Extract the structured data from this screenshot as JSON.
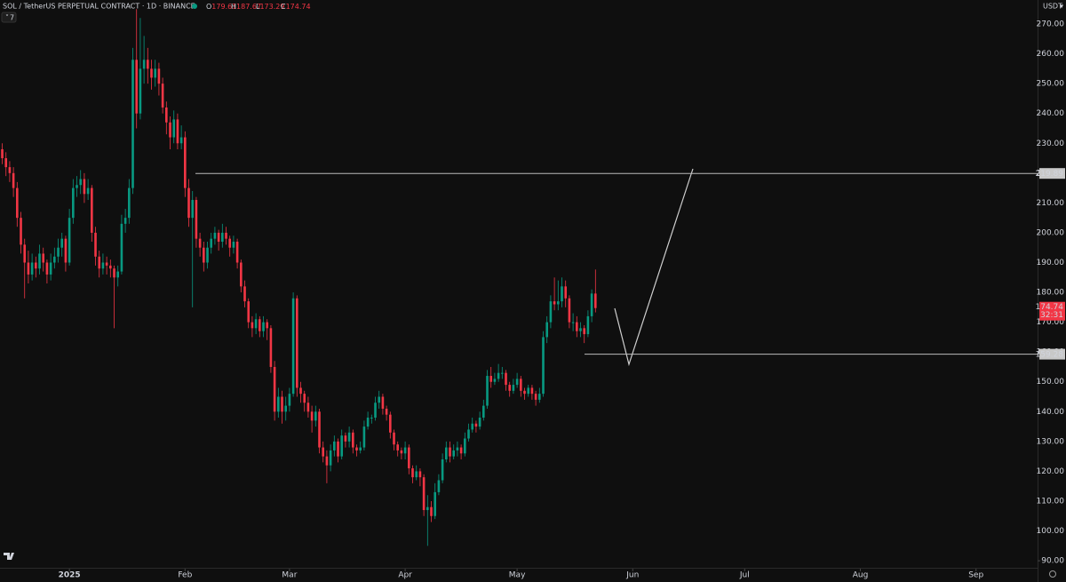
{
  "chart_data": {
    "type": "candlestick",
    "symbol": "SOL / TetherUS PERPETUAL CONTRACT · 1D · BINANCE",
    "ohlc_prefixes": [
      "O",
      "H",
      "L",
      "C"
    ],
    "currency": "USDT",
    "indicator_count": "7",
    "countdown": "32:31",
    "up_color": "#089981",
    "down_color": "#f23645",
    "ohlc": [
      [
        228,
        230,
        223,
        225
      ],
      [
        225,
        227,
        219,
        222
      ],
      [
        222,
        224,
        217,
        220
      ],
      [
        220,
        222,
        212,
        215
      ],
      [
        215,
        217,
        202,
        205
      ],
      [
        205,
        207,
        193,
        196
      ],
      [
        196,
        198,
        178,
        190
      ],
      [
        190,
        194,
        183,
        186
      ],
      [
        186,
        193,
        184,
        190
      ],
      [
        190,
        192,
        185,
        188
      ],
      [
        188,
        196,
        186,
        193
      ],
      [
        193,
        195,
        187,
        190
      ],
      [
        190,
        191,
        183,
        186
      ],
      [
        186,
        193,
        184,
        190
      ],
      [
        190,
        195,
        188,
        192
      ],
      [
        192,
        198,
        190,
        195
      ],
      [
        195,
        200,
        192,
        198
      ],
      [
        198,
        199,
        187,
        190
      ],
      [
        190,
        208,
        189,
        205
      ],
      [
        205,
        218,
        203,
        215
      ],
      [
        215,
        219,
        212,
        216
      ],
      [
        216,
        221,
        213,
        218
      ],
      [
        218,
        220,
        210,
        213
      ],
      [
        213,
        218,
        211,
        215
      ],
      [
        215,
        216,
        197,
        200
      ],
      [
        200,
        202,
        189,
        192
      ],
      [
        192,
        194,
        185,
        188
      ],
      [
        188,
        193,
        186,
        190
      ],
      [
        190,
        192,
        186,
        189
      ],
      [
        189,
        191,
        185,
        188
      ],
      [
        188,
        189,
        168,
        185
      ],
      [
        185,
        189,
        182,
        187
      ],
      [
        187,
        206,
        186,
        203
      ],
      [
        203,
        208,
        200,
        205
      ],
      [
        205,
        218,
        203,
        215
      ],
      [
        215,
        262,
        213,
        258
      ],
      [
        258,
        275,
        235,
        240
      ],
      [
        240,
        272,
        238,
        255
      ],
      [
        255,
        266,
        250,
        258
      ],
      [
        258,
        262,
        250,
        255
      ],
      [
        255,
        258,
        248,
        252
      ],
      [
        252,
        258,
        249,
        255
      ],
      [
        255,
        257,
        246,
        250
      ],
      [
        250,
        252,
        240,
        242
      ],
      [
        242,
        244,
        233,
        237
      ],
      [
        237,
        239,
        228,
        232
      ],
      [
        232,
        241,
        230,
        238
      ],
      [
        238,
        240,
        228,
        230
      ],
      [
        230,
        236,
        228,
        232
      ],
      [
        232,
        234,
        212,
        215
      ],
      [
        215,
        218,
        202,
        205
      ],
      [
        205,
        214,
        175,
        211
      ],
      [
        211,
        212,
        195,
        198
      ],
      [
        198,
        200,
        192,
        195
      ],
      [
        195,
        197,
        187,
        190
      ],
      [
        190,
        197,
        188,
        195
      ],
      [
        195,
        200,
        193,
        198
      ],
      [
        198,
        202,
        196,
        200
      ],
      [
        200,
        201,
        194,
        197
      ],
      [
        197,
        203,
        195,
        200
      ],
      [
        200,
        202,
        196,
        198
      ],
      [
        198,
        199,
        192,
        195
      ],
      [
        195,
        199,
        193,
        197
      ],
      [
        197,
        198,
        188,
        190
      ],
      [
        190,
        191,
        180,
        182
      ],
      [
        182,
        184,
        175,
        177
      ],
      [
        177,
        178,
        168,
        170
      ],
      [
        170,
        172,
        165,
        168
      ],
      [
        168,
        173,
        166,
        171
      ],
      [
        171,
        172,
        165,
        167
      ],
      [
        167,
        172,
        165,
        170
      ],
      [
        170,
        171,
        164,
        168
      ],
      [
        168,
        169,
        153,
        155
      ],
      [
        155,
        157,
        137,
        140
      ],
      [
        140,
        148,
        138,
        145
      ],
      [
        145,
        147,
        136,
        140
      ],
      [
        140,
        145,
        137,
        142
      ],
      [
        142,
        148,
        140,
        146
      ],
      [
        146,
        180,
        145,
        178
      ],
      [
        178,
        179,
        145,
        148
      ],
      [
        148,
        150,
        143,
        146
      ],
      [
        146,
        147,
        140,
        143
      ],
      [
        143,
        145,
        138,
        140
      ],
      [
        140,
        142,
        133,
        137
      ],
      [
        137,
        142,
        135,
        140
      ],
      [
        140,
        141,
        126,
        128
      ],
      [
        128,
        130,
        123,
        125
      ],
      [
        125,
        127,
        116,
        122
      ],
      [
        122,
        129,
        120,
        127
      ],
      [
        127,
        132,
        125,
        130
      ],
      [
        130,
        131,
        123,
        125
      ],
      [
        125,
        134,
        124,
        132
      ],
      [
        132,
        133,
        128,
        130
      ],
      [
        130,
        135,
        128,
        133
      ],
      [
        133,
        134,
        126,
        128
      ],
      [
        128,
        129,
        125,
        127
      ],
      [
        127,
        130,
        126,
        128
      ],
      [
        128,
        137,
        127,
        135
      ],
      [
        135,
        140,
        134,
        138
      ],
      [
        138,
        139,
        136,
        138
      ],
      [
        138,
        145,
        137,
        143
      ],
      [
        143,
        147,
        141,
        145
      ],
      [
        145,
        146,
        139,
        141
      ],
      [
        141,
        142,
        137,
        139
      ],
      [
        139,
        140,
        131,
        133
      ],
      [
        133,
        134,
        127,
        129
      ],
      [
        129,
        130,
        125,
        127
      ],
      [
        127,
        128,
        124,
        126
      ],
      [
        126,
        130,
        124,
        128
      ],
      [
        128,
        129,
        119,
        121
      ],
      [
        121,
        122,
        116,
        118
      ],
      [
        118,
        122,
        117,
        120
      ],
      [
        120,
        121,
        115,
        118
      ],
      [
        118,
        119,
        105,
        107
      ],
      [
        107,
        112,
        95,
        108
      ],
      [
        108,
        110,
        103,
        105
      ],
      [
        105,
        116,
        104,
        113
      ],
      [
        113,
        119,
        112,
        117
      ],
      [
        117,
        126,
        116,
        124
      ],
      [
        124,
        130,
        123,
        128
      ],
      [
        128,
        130,
        123,
        125
      ],
      [
        125,
        129,
        124,
        127
      ],
      [
        127,
        130,
        125,
        128
      ],
      [
        128,
        129,
        124,
        126
      ],
      [
        126,
        133,
        125,
        131
      ],
      [
        131,
        136,
        130,
        134
      ],
      [
        134,
        138,
        133,
        136
      ],
      [
        136,
        137,
        133,
        135
      ],
      [
        135,
        140,
        134,
        138
      ],
      [
        138,
        144,
        137,
        142
      ],
      [
        142,
        154,
        141,
        152
      ],
      [
        152,
        155,
        148,
        150
      ],
      [
        150,
        153,
        149,
        151
      ],
      [
        151,
        156,
        150,
        153
      ],
      [
        153,
        155,
        151,
        153
      ],
      [
        153,
        154,
        147,
        149
      ],
      [
        149,
        150,
        145,
        147
      ],
      [
        147,
        151,
        146,
        149
      ],
      [
        149,
        153,
        148,
        151
      ],
      [
        151,
        152,
        145,
        147
      ],
      [
        147,
        148,
        144,
        146
      ],
      [
        146,
        149,
        145,
        148
      ],
      [
        148,
        149,
        144,
        146
      ],
      [
        146,
        147,
        142,
        144
      ],
      [
        144,
        148,
        143,
        146
      ],
      [
        146,
        167,
        145,
        165
      ],
      [
        165,
        172,
        163,
        170
      ],
      [
        170,
        179,
        168,
        177
      ],
      [
        177,
        185,
        174,
        176
      ],
      [
        176,
        184,
        174,
        177
      ],
      [
        177,
        185,
        175,
        182
      ],
      [
        182,
        184,
        175,
        178
      ],
      [
        178,
        179,
        168,
        170
      ],
      [
        170,
        173,
        167,
        170
      ],
      [
        170,
        172,
        165,
        167
      ],
      [
        167,
        170,
        165,
        168
      ],
      [
        168,
        169,
        163,
        166
      ],
      [
        166,
        174,
        165,
        172
      ],
      [
        172,
        181,
        170,
        179.61
      ],
      [
        179.61,
        187.67,
        173.29,
        174.74
      ]
    ],
    "levels": [
      219.89,
      159.28
    ],
    "xlim": [
      -0.6,
      277.5
    ],
    "xticks": [
      {
        "value": 18,
        "label": "2025"
      },
      {
        "value": 49,
        "label": "Feb"
      },
      {
        "value": 77,
        "label": "Mar"
      },
      {
        "value": 108,
        "label": "Apr"
      },
      {
        "value": 138,
        "label": "May"
      },
      {
        "value": 169,
        "label": "Jun"
      },
      {
        "value": 199,
        "label": "Jul"
      },
      {
        "value": 230,
        "label": "Aug"
      },
      {
        "value": 261,
        "label": "Sep"
      }
    ],
    "ylim": [
      87.35,
      278.05
    ],
    "yticks": [
      {
        "value": 90,
        "label": "90.00"
      },
      {
        "value": 100,
        "label": "100.00"
      },
      {
        "value": 110,
        "label": "110.00"
      },
      {
        "value": 120,
        "label": "120.00"
      },
      {
        "value": 130,
        "label": "130.00"
      },
      {
        "value": 140,
        "label": "140.00"
      },
      {
        "value": 150,
        "label": "150.00"
      },
      {
        "value": 160,
        "label": "160.00"
      },
      {
        "value": 170,
        "label": "170.00"
      },
      {
        "value": 180,
        "label": "180.00"
      },
      {
        "value": 190,
        "label": "190.00"
      },
      {
        "value": 200,
        "label": "200.00"
      },
      {
        "value": 210,
        "label": "210.00"
      },
      {
        "value": 220,
        "label": "220.00"
      },
      {
        "value": 230,
        "label": "230.00"
      },
      {
        "value": 240,
        "label": "240.00"
      },
      {
        "value": 250,
        "label": "250.00"
      },
      {
        "value": 260,
        "label": "260.00"
      },
      {
        "value": 270,
        "label": "270.00"
      }
    ]
  }
}
